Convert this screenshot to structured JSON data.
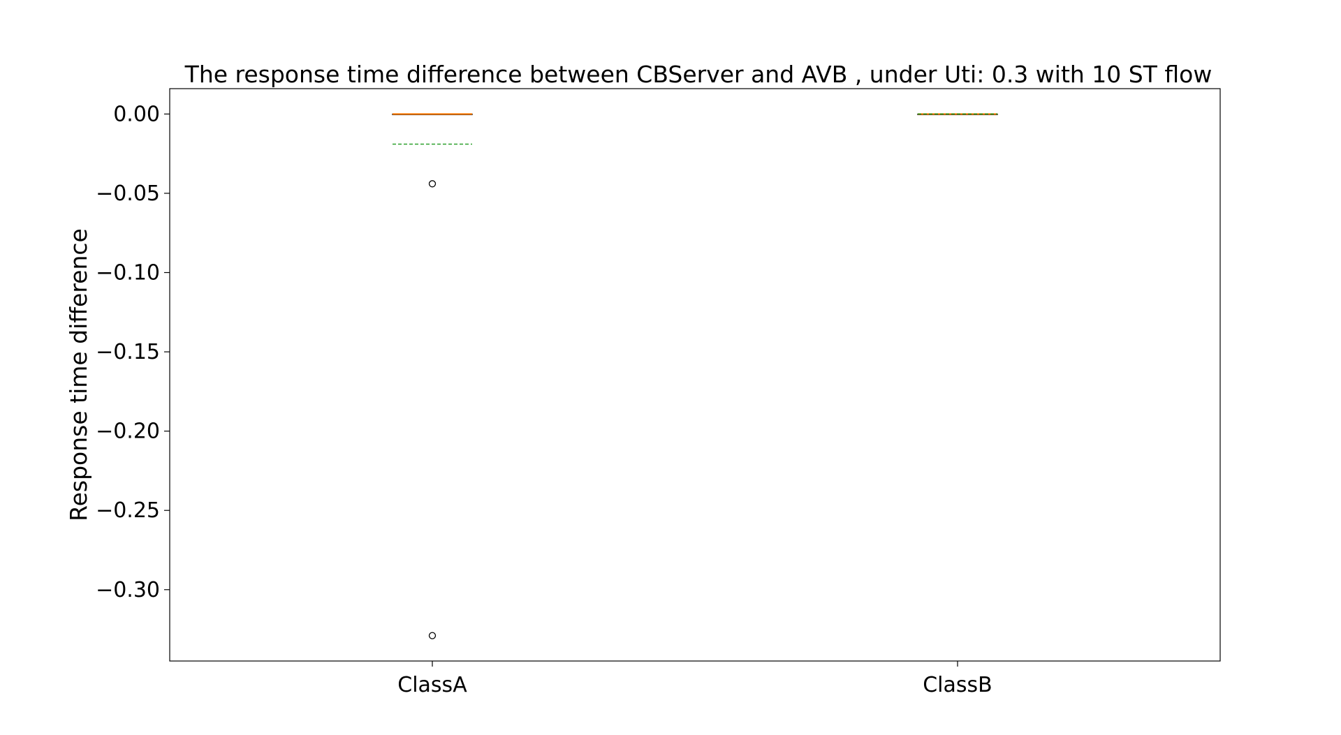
{
  "chart_data": {
    "type": "box",
    "title": "The response time difference between CBServer and AVB , under Uti: 0.3 with 10 ST flow",
    "xlabel": "",
    "ylabel": "Response time difference",
    "ylim": [
      -0.345,
      0.016
    ],
    "yticks": [
      0.0,
      -0.05,
      -0.1,
      -0.15,
      -0.2,
      -0.25,
      -0.3
    ],
    "ytick_labels": [
      "0.00",
      "−0.05",
      "−0.10",
      "−0.15",
      "−0.20",
      "−0.25",
      "−0.30"
    ],
    "categories": [
      "ClassA",
      "ClassB"
    ],
    "boxes": [
      {
        "category": "ClassA",
        "q1": 0.0,
        "median": 0.0,
        "q3": 0.0,
        "whisker_low": 0.0,
        "whisker_high": 0.0,
        "mean": -0.019,
        "outliers": [
          -0.044,
          -0.329
        ]
      },
      {
        "category": "ClassB",
        "q1": 0.0,
        "median": 0.0,
        "q3": 0.0,
        "whisker_low": 0.0,
        "whisker_high": 0.0,
        "mean": 0.0,
        "outliers": []
      }
    ],
    "grid": false,
    "colors": {
      "median": "#ff7f0e",
      "mean": "#2ca02c",
      "box": "#000000"
    }
  }
}
